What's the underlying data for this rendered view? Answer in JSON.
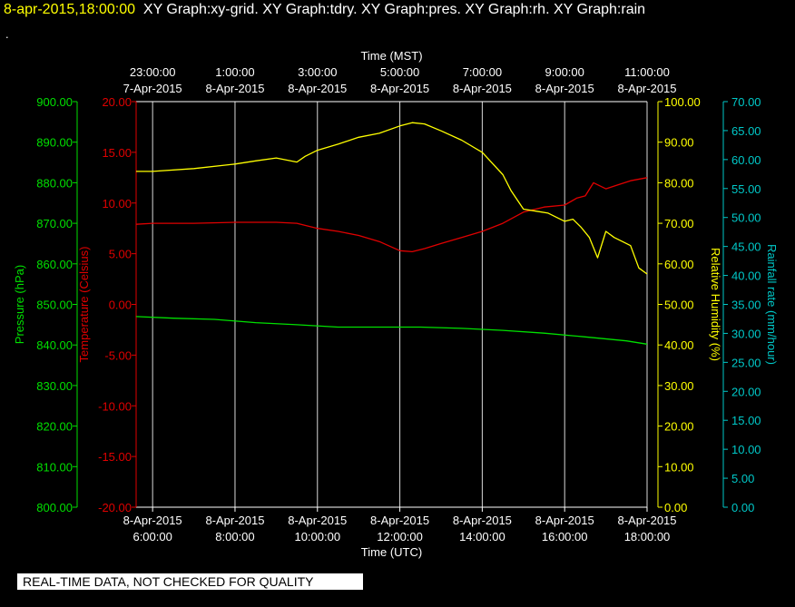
{
  "header": {
    "timestamp": "8-apr-2015,18:00:00",
    "titles": "XY Graph:xy-grid.  XY Graph:tdry.  XY Graph:pres.  XY Graph:rh.  XY Graph:rain",
    "dot": "."
  },
  "quality_notice": "REAL-TIME DATA, NOT CHECKED FOR QUALITY",
  "colors": {
    "pressure": "#00e000",
    "temperature": "#e00000",
    "humidity": "#ffff00",
    "rainfall": "#00c8c8",
    "grid": "#ffffff",
    "background": "#000000"
  },
  "chart_data": {
    "type": "line",
    "grid": true,
    "x_bottom": {
      "label": "Time (UTC)",
      "range_hours": [
        5.6,
        18.0
      ],
      "ticks": [
        {
          "hour": 6,
          "line1": "8-Apr-2015",
          "line2": "6:00:00"
        },
        {
          "hour": 8,
          "line1": "8-Apr-2015",
          "line2": "8:00:00"
        },
        {
          "hour": 10,
          "line1": "8-Apr-2015",
          "line2": "10:00:00"
        },
        {
          "hour": 12,
          "line1": "8-Apr-2015",
          "line2": "12:00:00"
        },
        {
          "hour": 14,
          "line1": "8-Apr-2015",
          "line2": "14:00:00"
        },
        {
          "hour": 16,
          "line1": "8-Apr-2015",
          "line2": "16:00:00"
        },
        {
          "hour": 18,
          "line1": "8-Apr-2015",
          "line2": "18:00:00"
        }
      ]
    },
    "x_top": {
      "label": "Time (MST)",
      "ticks": [
        {
          "hour": 6,
          "line1": "23:00:00",
          "line2": "7-Apr-2015"
        },
        {
          "hour": 8,
          "line1": "1:00:00",
          "line2": "8-Apr-2015"
        },
        {
          "hour": 10,
          "line1": "3:00:00",
          "line2": "8-Apr-2015"
        },
        {
          "hour": 12,
          "line1": "5:00:00",
          "line2": "8-Apr-2015"
        },
        {
          "hour": 14,
          "line1": "7:00:00",
          "line2": "8-Apr-2015"
        },
        {
          "hour": 16,
          "line1": "9:00:00",
          "line2": "8-Apr-2015"
        },
        {
          "hour": 18,
          "line1": "11:00:00",
          "line2": "8-Apr-2015"
        }
      ]
    },
    "y_axes": {
      "pressure": {
        "label": "Pressure (hPa)",
        "range": [
          800,
          900
        ],
        "ticks": [
          "800.00",
          "810.00",
          "820.00",
          "830.00",
          "840.00",
          "850.00",
          "860.00",
          "870.00",
          "880.00",
          "890.00",
          "900.00"
        ]
      },
      "temperature": {
        "label": "Temperature (Celsius)",
        "range": [
          -20,
          20
        ],
        "ticks": [
          "-20.00",
          "-15.00",
          "-10.00",
          "-5.00",
          "0.00",
          "5.00",
          "10.00",
          "15.00",
          "20.00"
        ]
      },
      "humidity": {
        "label": "Relative Humidity (%)",
        "range": [
          0,
          100
        ],
        "ticks": [
          "0.00",
          "10.00",
          "20.00",
          "30.00",
          "40.00",
          "50.00",
          "60.00",
          "70.00",
          "80.00",
          "90.00",
          "100.00"
        ]
      },
      "rainfall": {
        "label": "Rainfall rate (mm/hour)",
        "range": [
          0,
          70
        ],
        "ticks": [
          "0.00",
          "5.00",
          "10.00",
          "15.00",
          "20.00",
          "25.00",
          "30.00",
          "35.00",
          "40.00",
          "45.00",
          "50.00",
          "55.00",
          "60.00",
          "65.00",
          "70.00"
        ]
      }
    },
    "series": [
      {
        "key": "pressure",
        "axis": "pressure",
        "x": [
          5.6,
          6.5,
          7.5,
          8.5,
          9.5,
          10.5,
          11.5,
          12.5,
          13.5,
          14.5,
          15.5,
          16.5,
          17.5,
          18.0
        ],
        "y": [
          847.0,
          846.6,
          846.3,
          845.5,
          845.0,
          844.4,
          844.4,
          844.4,
          844.1,
          843.6,
          842.9,
          842.0,
          841.0,
          840.2
        ]
      },
      {
        "key": "temperature",
        "axis": "temperature",
        "x": [
          5.6,
          6.0,
          7.0,
          8.0,
          9.0,
          9.5,
          10.0,
          10.5,
          11.0,
          11.5,
          12.0,
          12.3,
          12.6,
          13.0,
          13.5,
          14.0,
          14.5,
          15.0,
          15.5,
          16.0,
          16.3,
          16.5,
          16.7,
          17.0,
          17.3,
          17.6,
          18.0
        ],
        "y": [
          7.9,
          8.0,
          8.0,
          8.1,
          8.1,
          8.0,
          7.5,
          7.2,
          6.8,
          6.2,
          5.3,
          5.2,
          5.5,
          6.0,
          6.6,
          7.2,
          8.0,
          9.1,
          9.6,
          9.8,
          10.5,
          10.7,
          12.0,
          11.4,
          11.8,
          12.2,
          12.5
        ]
      },
      {
        "key": "humidity",
        "axis": "humidity",
        "x": [
          5.6,
          6.0,
          7.0,
          8.0,
          8.5,
          9.0,
          9.5,
          9.7,
          10.0,
          10.5,
          11.0,
          11.5,
          12.0,
          12.3,
          12.6,
          13.0,
          13.5,
          14.0,
          14.5,
          14.7,
          15.0,
          15.3,
          15.6,
          16.0,
          16.2,
          16.4,
          16.6,
          16.8,
          17.0,
          17.2,
          17.4,
          17.6,
          17.8,
          18.0
        ],
        "y": [
          82.8,
          82.8,
          83.5,
          84.6,
          85.4,
          86.1,
          85.1,
          86.5,
          88.0,
          89.5,
          91.2,
          92.2,
          94.0,
          94.8,
          94.5,
          92.8,
          90.5,
          87.5,
          82.0,
          78.0,
          73.5,
          73.0,
          72.5,
          70.5,
          71.0,
          69.0,
          66.5,
          61.5,
          68.0,
          66.5,
          65.5,
          64.5,
          59.0,
          57.5
        ]
      }
    ]
  }
}
